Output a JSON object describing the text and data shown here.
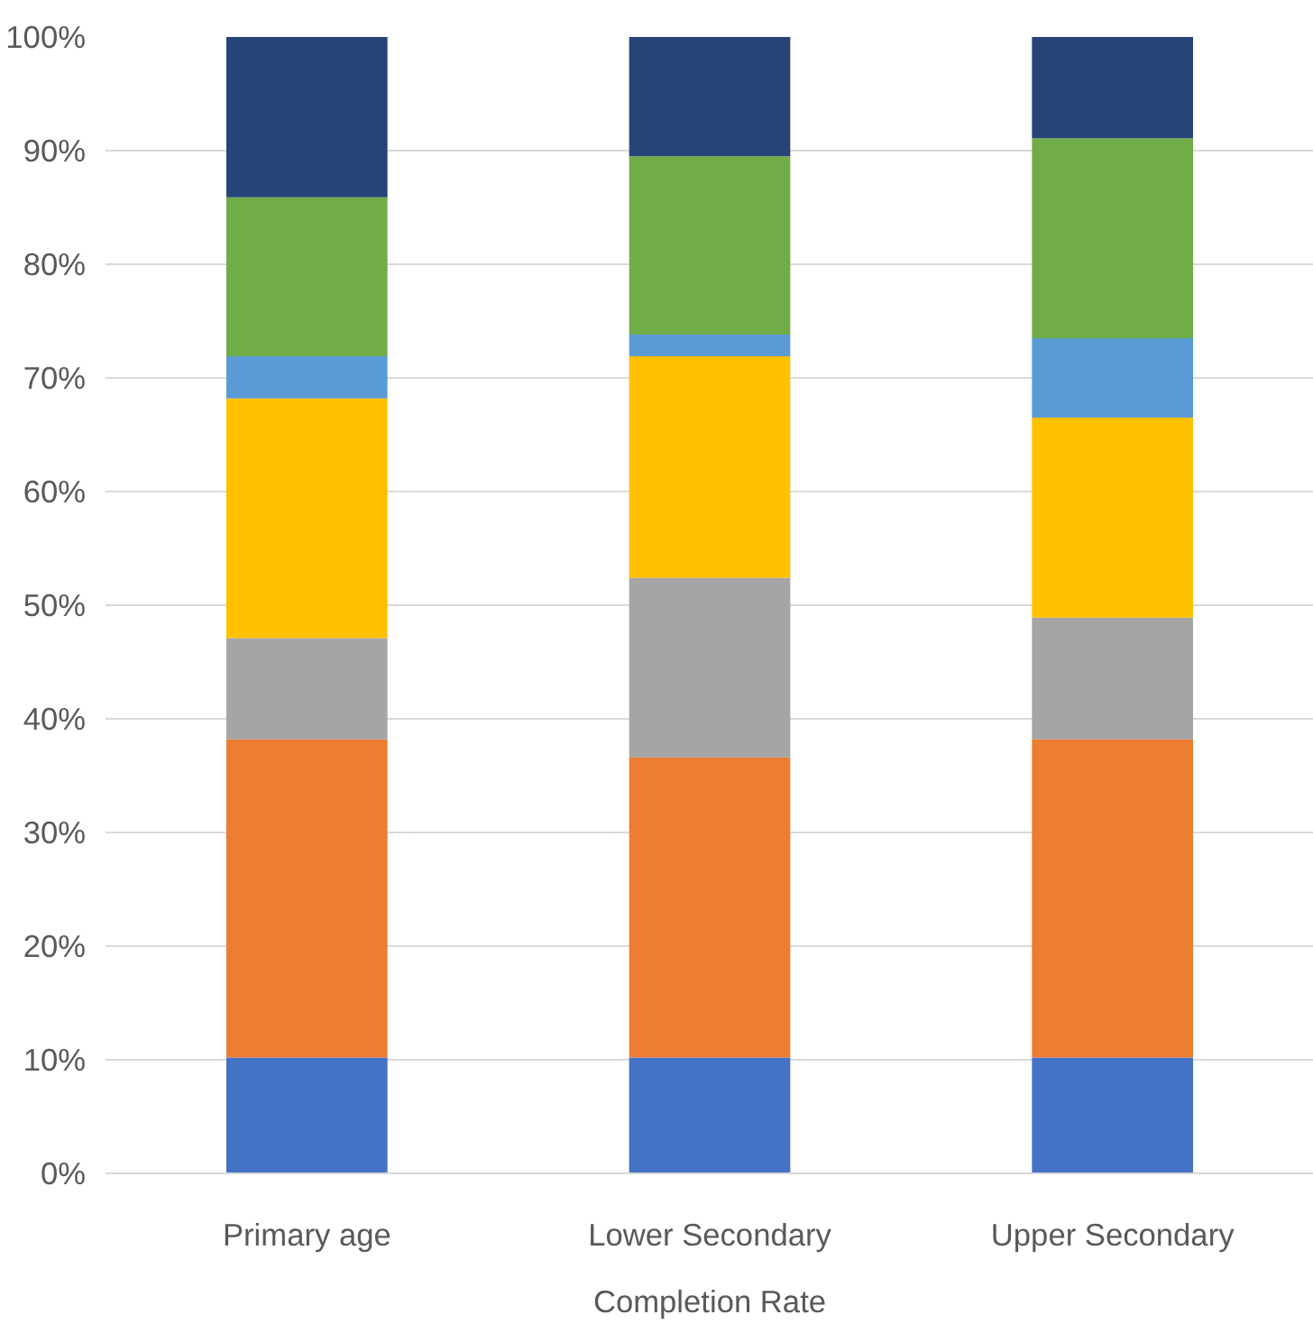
{
  "chart_data": {
    "type": "bar",
    "stacked": true,
    "xlabel": "Completion Rate",
    "categories": [
      "Primary age",
      "Lower Secondary",
      "Upper Secondary"
    ],
    "series": [
      {
        "color": "#4472c4",
        "values": [
          10.2,
          10.2,
          10.2
        ]
      },
      {
        "color": "#ed7d31",
        "values": [
          28.0,
          26.4,
          28.0
        ]
      },
      {
        "color": "#a5a5a5",
        "values": [
          8.9,
          15.8,
          10.7
        ]
      },
      {
        "color": "#ffc000",
        "values": [
          21.1,
          19.5,
          17.6
        ]
      },
      {
        "color": "#5b9bd5",
        "values": [
          3.7,
          1.9,
          7.0
        ]
      },
      {
        "color": "#70ad47",
        "values": [
          14.0,
          15.7,
          17.6
        ]
      },
      {
        "color": "#264478",
        "values": [
          14.1,
          10.5,
          8.9
        ]
      }
    ],
    "ylim": [
      0,
      100
    ],
    "yticks": [
      {
        "value": 0,
        "label": "0%"
      },
      {
        "value": 10,
        "label": "10%"
      },
      {
        "value": 20,
        "label": "20%"
      },
      {
        "value": 30,
        "label": "30%"
      },
      {
        "value": 40,
        "label": "40%"
      },
      {
        "value": 50,
        "label": "50%"
      },
      {
        "value": 60,
        "label": "60%"
      },
      {
        "value": 70,
        "label": "70%"
      },
      {
        "value": 80,
        "label": "80%"
      },
      {
        "value": 90,
        "label": "90%"
      },
      {
        "value": 100,
        "label": "100%"
      }
    ],
    "grid": "y"
  }
}
